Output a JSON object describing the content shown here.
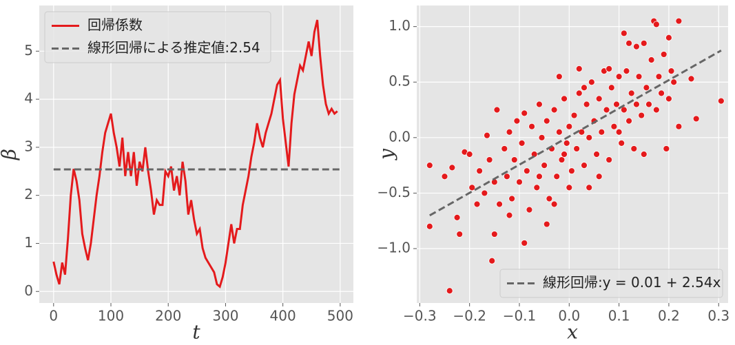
{
  "chart_data": [
    {
      "type": "line",
      "xlabel": "t",
      "ylabel": "β",
      "grid": true,
      "legend": "upper left",
      "xlim": [
        -25,
        523
      ],
      "ylim": [
        -0.24,
        5.95
      ],
      "xticks": [
        0,
        100,
        200,
        300,
        400,
        500
      ],
      "yticks": [
        0,
        1,
        2,
        3,
        4,
        5
      ],
      "series": [
        {
          "name": "回帰係数",
          "color": "#e41a1c",
          "dashed": false,
          "x": [
            0,
            5,
            10,
            15,
            20,
            25,
            30,
            35,
            40,
            45,
            50,
            55,
            60,
            65,
            70,
            75,
            80,
            85,
            90,
            95,
            100,
            105,
            110,
            115,
            120,
            125,
            130,
            135,
            140,
            145,
            150,
            155,
            160,
            165,
            170,
            175,
            180,
            185,
            190,
            195,
            200,
            205,
            210,
            215,
            220,
            225,
            230,
            235,
            240,
            245,
            250,
            255,
            260,
            265,
            270,
            275,
            280,
            285,
            290,
            295,
            300,
            305,
            310,
            315,
            320,
            325,
            330,
            335,
            340,
            345,
            350,
            355,
            360,
            365,
            370,
            375,
            380,
            385,
            390,
            395,
            400,
            405,
            410,
            415,
            420,
            425,
            430,
            435,
            440,
            445,
            450,
            455,
            460,
            465,
            470,
            475,
            480,
            485,
            490,
            495
          ],
          "values": [
            0.62,
            0.35,
            0.15,
            0.6,
            0.35,
            1.1,
            2.0,
            2.55,
            2.3,
            1.9,
            1.2,
            0.9,
            0.65,
            1.0,
            1.5,
            2.0,
            2.4,
            2.9,
            3.3,
            3.5,
            3.7,
            3.3,
            3.0,
            2.6,
            3.2,
            2.4,
            2.9,
            2.4,
            2.9,
            2.2,
            2.7,
            2.5,
            3.0,
            2.5,
            2.1,
            1.6,
            1.9,
            1.8,
            1.8,
            2.5,
            2.4,
            2.6,
            2.1,
            2.4,
            2.0,
            2.7,
            2.3,
            1.6,
            1.9,
            1.5,
            1.2,
            1.3,
            0.9,
            0.7,
            0.6,
            0.5,
            0.4,
            0.15,
            0.1,
            0.3,
            0.6,
            1.0,
            1.4,
            1.0,
            1.3,
            1.3,
            1.8,
            2.1,
            2.4,
            2.8,
            3.1,
            3.5,
            3.2,
            3.0,
            3.3,
            3.5,
            3.7,
            4.0,
            4.3,
            4.4,
            3.6,
            3.1,
            2.6,
            3.5,
            4.1,
            4.4,
            4.7,
            4.6,
            4.9,
            5.2,
            4.9,
            5.4,
            5.65,
            4.9,
            4.3,
            3.9,
            3.7,
            3.8,
            3.7,
            3.75
          ]
        },
        {
          "name": "線形回帰による推定値:2.54",
          "color": "#666666",
          "dashed": true,
          "x": [
            0,
            499
          ],
          "values": [
            2.54,
            2.54
          ]
        }
      ]
    },
    {
      "type": "scatter",
      "xlabel": "x",
      "ylabel": "y",
      "grid": true,
      "legend": "lower right",
      "xlim": [
        -0.306,
        0.319
      ],
      "ylim": [
        -1.49,
        1.19
      ],
      "xticks": [
        {
          "value": -0.3,
          "label": "−0.3"
        },
        {
          "value": -0.2,
          "label": "−0.2"
        },
        {
          "value": -0.1,
          "label": "−0.1"
        },
        {
          "value": 0,
          "label": "0.0"
        },
        0.1,
        0.2,
        0.3
      ],
      "yticks": [
        {
          "value": -1,
          "label": "−1.0"
        },
        {
          "value": -0.5,
          "label": "−0.5"
        },
        {
          "value": 0,
          "label": "0.0"
        },
        0.5,
        {
          "value": 1,
          "label": "1.0"
        }
      ],
      "series": [
        {
          "color": "#e41a1c",
          "marker": true,
          "x": [
            -0.28,
            -0.28,
            -0.24,
            -0.155,
            -0.09,
            0.305,
            0.17,
            0.22,
            0.11,
            0.175,
            0.12,
            0.135,
            0.15,
            0.2,
            0.245,
            0.255,
            0.22,
            -0.225,
            -0.22,
            -0.145,
            -0.15,
            -0.02,
            -0.045,
            -0.25,
            -0.235,
            -0.21,
            -0.2,
            -0.195,
            -0.185,
            -0.18,
            -0.17,
            -0.165,
            -0.16,
            -0.15,
            -0.14,
            -0.13,
            -0.125,
            -0.12,
            -0.115,
            -0.11,
            -0.105,
            -0.1,
            -0.095,
            -0.09,
            -0.085,
            -0.08,
            -0.075,
            -0.07,
            -0.065,
            -0.06,
            -0.055,
            -0.05,
            -0.045,
            -0.04,
            -0.035,
            -0.03,
            -0.025,
            -0.02,
            -0.015,
            -0.01,
            -0.005,
            0.0,
            0.005,
            0.01,
            0.015,
            0.02,
            0.025,
            0.03,
            0.035,
            0.04,
            0.045,
            0.05,
            0.055,
            0.06,
            0.065,
            0.07,
            0.075,
            0.08,
            0.085,
            0.09,
            0.095,
            0.1,
            0.105,
            0.11,
            0.115,
            0.12,
            0.125,
            0.13,
            0.135,
            0.14,
            0.145,
            0.15,
            0.155,
            0.16,
            0.165,
            0.175,
            0.18,
            0.185,
            0.19,
            0.195,
            0.2,
            0.205,
            0.21,
            -0.06,
            -0.03,
            0.0,
            0.03,
            0.06,
            0.1,
            -0.12,
            0.02,
            0.04,
            -0.01,
            0.08
          ],
          "values": [
            -0.25,
            -0.8,
            -1.38,
            -1.11,
            -0.95,
            0.33,
            1.05,
            1.05,
            0.94,
            1.02,
            0.85,
            0.82,
            0.85,
            0.9,
            0.53,
            0.17,
            0.1,
            -0.72,
            -0.87,
            0.25,
            -0.87,
            0.55,
            -0.78,
            -0.35,
            -0.27,
            -0.13,
            -0.15,
            -0.45,
            -0.6,
            -0.3,
            -0.5,
            0.02,
            -0.2,
            -0.4,
            -0.6,
            -0.1,
            -0.35,
            0.05,
            -0.55,
            -0.2,
            0.15,
            -0.4,
            -0.05,
            0.22,
            -0.3,
            -0.65,
            0.1,
            -0.15,
            -0.45,
            0.3,
            0.0,
            -0.25,
            0.15,
            -0.55,
            -0.1,
            0.25,
            -0.35,
            0.05,
            -0.2,
            0.35,
            -0.05,
            0.1,
            -0.3,
            0.2,
            -0.1,
            0.4,
            0.05,
            -0.25,
            0.3,
            0.0,
            0.5,
            0.15,
            -0.15,
            0.35,
            0.05,
            0.6,
            0.25,
            -0.2,
            0.45,
            0.1,
            0.3,
            0.55,
            -0.05,
            0.25,
            0.6,
            0.15,
            0.4,
            -0.1,
            0.3,
            0.55,
            0.2,
            -0.15,
            0.45,
            0.3,
            0.7,
            0.25,
            0.55,
            0.4,
            0.75,
            -0.1,
            0.35,
            0.6,
            0.5,
            -0.35,
            -0.6,
            -0.45,
            0.45,
            -0.35,
            0.05,
            -0.7,
            0.62,
            -0.45,
            -0.15,
            0.62
          ]
        },
        {
          "name": "線形回帰:y = 0.01 + 2.54x",
          "color": "#666666",
          "dashed": true,
          "x": [
            -0.28,
            0.305
          ],
          "values": [
            -0.7012,
            0.7847
          ]
        }
      ]
    }
  ]
}
